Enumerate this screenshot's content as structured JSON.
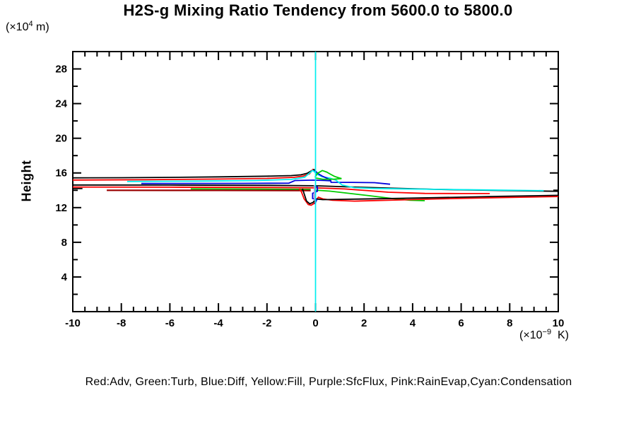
{
  "title": "H2S-g Mixing Ratio Tendency from 5600.0 to 5800.0",
  "y_axis": {
    "label": "Height",
    "unit_prefix": "(×10",
    "unit_exp": "4",
    "unit_suffix": " m)",
    "range": [
      0,
      30
    ],
    "major_ticks": [
      4,
      8,
      12,
      16,
      20,
      24,
      28
    ],
    "minor_ticks": [
      2,
      6,
      10,
      14,
      18,
      22,
      26
    ]
  },
  "x_axis": {
    "unit_prefix": "(×10",
    "unit_exp": "−9",
    "unit_suffix": "  K)",
    "range": [
      -10,
      10
    ],
    "major_ticks": [
      -10,
      -8,
      -6,
      -4,
      -2,
      0,
      2,
      4,
      6,
      8,
      10
    ],
    "minor_step": 0.5
  },
  "legend": {
    "text": "Red:Adv, Green:Turb, Blue:Diff, Yellow:Fill, Purple:SfcFlux, Pink:RainEvap,Cyan:Condensation"
  },
  "colors": {
    "black": "#000000",
    "red": "#ff0000",
    "dark_red": "#990000",
    "green": "#00cc00",
    "blue": "#0000dd",
    "cyan": "#00eeee",
    "purple": "#b3a0d9",
    "frame": "#000000"
  },
  "chart_data": {
    "type": "line",
    "title": "H2S-g Mixing Ratio Tendency from 5600.0 to 5800.0",
    "xlabel": "(×10⁻⁹ K)",
    "ylabel": "Height (×10⁴ m)",
    "xlim": [
      -10,
      10
    ],
    "ylim": [
      0,
      30
    ],
    "grid": false,
    "series": [
      {
        "name": "net-band",
        "color": "#000000",
        "width": 1.8,
        "points": [
          [
            -10,
            14.61
          ],
          [
            -6,
            14.6
          ],
          [
            -2,
            14.57
          ],
          [
            0,
            14.52
          ],
          [
            1.5,
            14.38
          ],
          [
            3,
            14.25
          ],
          [
            5,
            14.1
          ],
          [
            7.5,
            13.98
          ],
          [
            10,
            13.88
          ]
        ]
      },
      {
        "name": "adv-band",
        "color": "#ff0000",
        "width": 1.8,
        "points": [
          [
            -10,
            14.37
          ],
          [
            -6,
            14.36
          ],
          [
            -2,
            14.32
          ],
          [
            0,
            14.28
          ],
          [
            1.2,
            14.15
          ],
          [
            2.2,
            13.95
          ],
          [
            3,
            13.78
          ],
          [
            4.5,
            13.64
          ],
          [
            6,
            13.62
          ],
          [
            7.18,
            13.62
          ]
        ]
      },
      {
        "name": "net-stub",
        "color": "#000000",
        "width": 1.8,
        "points": [
          [
            -10,
            14.2
          ],
          [
            -9.6,
            14.2
          ]
        ]
      },
      {
        "name": "turb-band",
        "color": "#00cc00",
        "width": 1.8,
        "points": [
          [
            -5.14,
            14.16
          ],
          [
            -2.5,
            14.14
          ],
          [
            -0.2,
            14.1
          ]
        ]
      },
      {
        "name": "rain-band",
        "color": "#990000",
        "width": 2.2,
        "points": [
          [
            -8.6,
            14.0
          ],
          [
            -4,
            13.99
          ],
          [
            -0.2,
            13.97
          ]
        ]
      },
      {
        "name": "diff-band",
        "color": "#0000dd",
        "width": 1.8,
        "points": [
          [
            -7.18,
            14.78
          ],
          [
            -3,
            14.8
          ],
          [
            -1.1,
            14.82
          ],
          [
            -0.85,
            15.12
          ],
          [
            -0.1,
            15.17
          ],
          [
            0.35,
            15.13
          ],
          [
            0.63,
            15.1
          ],
          [
            0.64,
            14.92
          ],
          [
            1.5,
            14.91
          ],
          [
            2.43,
            14.88
          ],
          [
            3.07,
            14.7
          ]
        ]
      },
      {
        "name": "net-upper",
        "color": "#000000",
        "width": 1.8,
        "points": [
          [
            -10,
            15.43
          ],
          [
            -8,
            15.45
          ],
          [
            -6,
            15.49
          ],
          [
            -4,
            15.55
          ],
          [
            -2,
            15.63
          ],
          [
            -1,
            15.69
          ],
          [
            -0.6,
            15.78
          ],
          [
            -0.35,
            15.95
          ],
          [
            -0.07,
            16.4
          ],
          [
            0.05,
            16.05
          ],
          [
            0.18,
            15.7
          ],
          [
            0.28,
            15.57
          ]
        ]
      },
      {
        "name": "adv-upper",
        "color": "#ff0000",
        "width": 1.8,
        "points": [
          [
            -10,
            15.18
          ],
          [
            -7,
            15.22
          ],
          [
            -4,
            15.29
          ],
          [
            -2,
            15.37
          ],
          [
            -0.9,
            15.49
          ],
          [
            -0.5,
            15.64
          ],
          [
            -0.25,
            15.9
          ],
          [
            -0.1,
            16.45
          ]
        ]
      },
      {
        "name": "cond-upper",
        "color": "#00eeee",
        "width": 1.8,
        "points": [
          [
            -7.76,
            15.02
          ],
          [
            -5,
            15.06
          ],
          [
            -2.5,
            15.12
          ],
          [
            -1,
            15.25
          ],
          [
            -0.45,
            15.5
          ],
          [
            -0.12,
            16.3
          ],
          [
            0.1,
            15.8
          ],
          [
            0.3,
            15.55
          ],
          [
            0.6,
            15.4
          ],
          [
            0.85,
            15.15
          ],
          [
            1.1,
            14.6
          ],
          [
            1.6,
            14.3
          ],
          [
            2.4,
            14.22
          ],
          [
            3.6,
            14.16
          ],
          [
            5.2,
            14.1
          ],
          [
            7,
            14.04
          ],
          [
            9.4,
            13.96
          ]
        ]
      },
      {
        "name": "diff-apex",
        "color": "#0000dd",
        "width": 1.8,
        "points": [
          [
            -0.04,
            16.3
          ],
          [
            0.12,
            15.9
          ],
          [
            0.3,
            15.6
          ],
          [
            0.5,
            15.35
          ],
          [
            0.63,
            15.15
          ]
        ]
      },
      {
        "name": "turb-loop",
        "color": "#00cc00",
        "width": 1.8,
        "points": [
          [
            -0.02,
            15.5
          ],
          [
            0.08,
            15.95
          ],
          [
            0.28,
            16.28
          ],
          [
            0.46,
            16.1
          ],
          [
            0.62,
            15.85
          ],
          [
            0.78,
            15.6
          ],
          [
            0.95,
            15.45
          ],
          [
            1.07,
            15.35
          ],
          [
            0.75,
            15.28
          ],
          [
            0.3,
            15.28
          ],
          [
            -0.02,
            15.42
          ]
        ]
      },
      {
        "name": "turb-lower",
        "color": "#00cc00",
        "width": 1.8,
        "points": [
          [
            -0.02,
            14.02
          ],
          [
            0.6,
            13.9
          ],
          [
            1.2,
            13.7
          ],
          [
            2.2,
            13.38
          ],
          [
            3.3,
            13.0
          ],
          [
            3.9,
            12.86
          ],
          [
            4.5,
            12.8
          ]
        ]
      },
      {
        "name": "adv-hook-lower",
        "color": "#ff0000",
        "width": 1.8,
        "points": [
          [
            -0.66,
            14.18
          ],
          [
            -0.58,
            13.8
          ],
          [
            -0.47,
            13.0
          ],
          [
            -0.3,
            12.35
          ],
          [
            -0.18,
            12.28
          ],
          [
            -0.05,
            12.5
          ],
          [
            0.05,
            12.95
          ],
          [
            0.12,
            13.2
          ],
          [
            0.3,
            13.0
          ],
          [
            0.7,
            12.85
          ],
          [
            1.6,
            12.75
          ],
          [
            3,
            12.85
          ],
          [
            5,
            13.0
          ],
          [
            7.5,
            13.15
          ],
          [
            10,
            13.28
          ]
        ]
      },
      {
        "name": "net-hook-lower",
        "color": "#000000",
        "width": 1.8,
        "points": [
          [
            -0.54,
            14.18
          ],
          [
            -0.47,
            13.6
          ],
          [
            -0.37,
            12.75
          ],
          [
            -0.24,
            12.45
          ],
          [
            -0.1,
            12.6
          ],
          [
            0.0,
            13.0
          ],
          [
            0.3,
            12.92
          ],
          [
            1.0,
            12.95
          ],
          [
            2.5,
            13.02
          ],
          [
            5,
            13.15
          ],
          [
            7.5,
            13.3
          ],
          [
            10,
            13.42
          ]
        ]
      },
      {
        "name": "diff-zigzag",
        "color": "#0000dd",
        "width": 1.8,
        "points": [
          [
            -0.06,
            14.5
          ],
          [
            0.08,
            14.35
          ],
          [
            0.08,
            13.9
          ],
          [
            -0.12,
            13.65
          ],
          [
            -0.12,
            13.05
          ],
          [
            0.05,
            12.9
          ],
          [
            -0.03,
            12.4
          ]
        ]
      },
      {
        "name": "cond-zero-vertical",
        "color": "#00eeee",
        "width": 1.7,
        "points": [
          [
            0,
            0
          ],
          [
            0,
            30
          ]
        ]
      },
      {
        "name": "sfcflux-vertical",
        "color": "#b3a0d9",
        "width": 1.7,
        "points": [
          [
            -0.05,
            14.6
          ],
          [
            -0.05,
            12.78
          ]
        ]
      }
    ]
  }
}
